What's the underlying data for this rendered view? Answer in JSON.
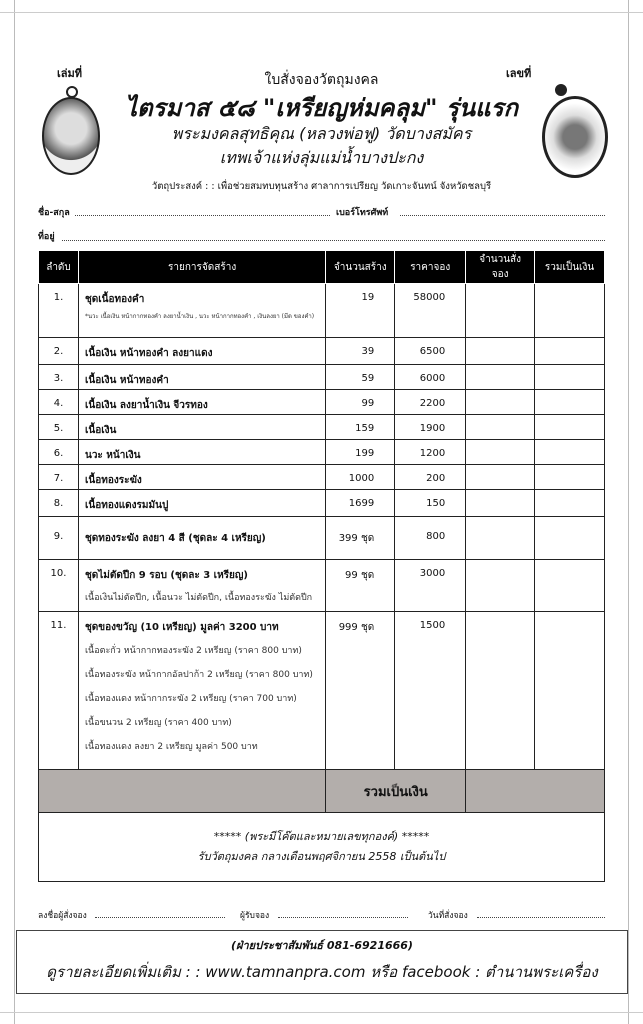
{
  "header": {
    "book_no_label": "เล่มที่",
    "doc_no_label": "เลขที่",
    "form_title": "ใบสั่งจองวัตถุมงคล",
    "main_title": "ไตรมาส ๕๘ \"เหรียญห่มคลุม\" รุ่นแรก",
    "subtitle1": "พระมงคลสุทธิคุณ (หลวงพ่อฟู) วัดบางสมัคร",
    "subtitle2": "เทพเจ้าแห่งลุ่มแม่น้ำบางปะกง",
    "purpose": "วัตถุประสงค์ : : เพื่อช่วยสมทบทุนสร้าง ศาลาการเปรียญ วัดเกาะจันทน์ จังหวัดชลบุรี",
    "name_label": "ชื่อ-สกุล",
    "phone_label": "เบอร์โทรศัพท์",
    "address_label": "ที่อยู่"
  },
  "table": {
    "columns": [
      "ลำดับ",
      "รายการจัดสร้าง",
      "จำนวนสร้าง",
      "ราคาจอง",
      "จำนวนสั่งจอง",
      "รวมเป็นเงิน"
    ],
    "rows": [
      {
        "no": "1.",
        "item": "ชุดเนื้อทองคำ",
        "note": "*นวะ เนื้อเงิน หน้ากากทองคำ ลงยาน้ำเงิน , นวะ หน้ากากทองคำ , เงินลงยา (มีด ของคำ)",
        "qty": "19",
        "price": "58000"
      },
      {
        "no": "2.",
        "item": "เนื้อเงิน หน้าทองคำ ลงยาแดง",
        "qty": "39",
        "price": "6500"
      },
      {
        "no": "3.",
        "item": "เนื้อเงิน หน้าทองคำ",
        "qty": "59",
        "price": "6000"
      },
      {
        "no": "4.",
        "item": "เนื้อเงิน ลงยาน้ำเงิน จีวรทอง",
        "qty": "99",
        "price": "2200"
      },
      {
        "no": "5.",
        "item": "เนื้อเงิน",
        "qty": "159",
        "price": "1900"
      },
      {
        "no": "6.",
        "item": "นวะ หน้าเงิน",
        "qty": "199",
        "price": "1200"
      },
      {
        "no": "7.",
        "item": "เนื้อทองระฆัง",
        "qty": "1000",
        "price": "200"
      },
      {
        "no": "8.",
        "item": "เนื้อทองแดงรมมันปู",
        "qty": "1699",
        "price": "150"
      },
      {
        "no": "9.",
        "item": "ชุดทองระฆัง ลงยา 4 สี (ชุดละ 4 เหรียญ)",
        "qty": "399 ชุด",
        "price": "800"
      },
      {
        "no": "10.",
        "item": "ชุดไม่ตัดปีก 9 รอบ (ชุดละ 3 เหรียญ)",
        "details": [
          "เนื้อเงินไม่ตัดปีก, เนื้อนวะ ไม่ตัดปีก, เนื้อทองระฆัง ไม่ตัดปีก"
        ],
        "qty": "99 ชุด",
        "price": "3000"
      },
      {
        "no": "11.",
        "item": "ชุดของขวัญ (10 เหรียญ) มูลค่า 3200 บาท",
        "details": [
          "เนื้อตะกั่ว หน้ากากทองระฆัง 2 เหรียญ (ราคา 800 บาท)",
          "เนื้อทองระฆัง หน้ากากอัลปาก้า 2 เหรียญ (ราคา 800 บาท)",
          "เนื้อทองแดง หน้ากากระฆัง 2 เหรียญ (ราคา 700 บาท)",
          "เนื้อขนวน 2 เหรียญ (ราคา 400 บาท)",
          "เนื้อทองแดง ลงยา 2 เหรียญ มูลค่า 500 บาท"
        ],
        "qty": "999 ชุด",
        "price": "1500"
      }
    ],
    "total_label": "รวมเป็นเงิน"
  },
  "note": {
    "line1": "***** (พระมีโค๊ตและหมายเลขทุกองค์) *****",
    "line2": "รับวัตถุมงคล กลางเดือนพฤศจิกายน  2558  เป็นต้นไป"
  },
  "signatures": {
    "orderer": "ลงชื่อผู้สั่งจอง",
    "receiver": "ผู้รับจอง",
    "date": "วันที่สั่งจอง"
  },
  "footer": {
    "pr": "(ฝ่ายประชาสัมพันธ์ 081-6921666)",
    "more": "ดูรายละเอียดเพิ่มเติม : : www.tamnanpra.com หรือ facebook : ตำนานพระเครื่อง"
  },
  "colors": {
    "header_bg": "#000000",
    "total_bg": "#b3aeab"
  }
}
